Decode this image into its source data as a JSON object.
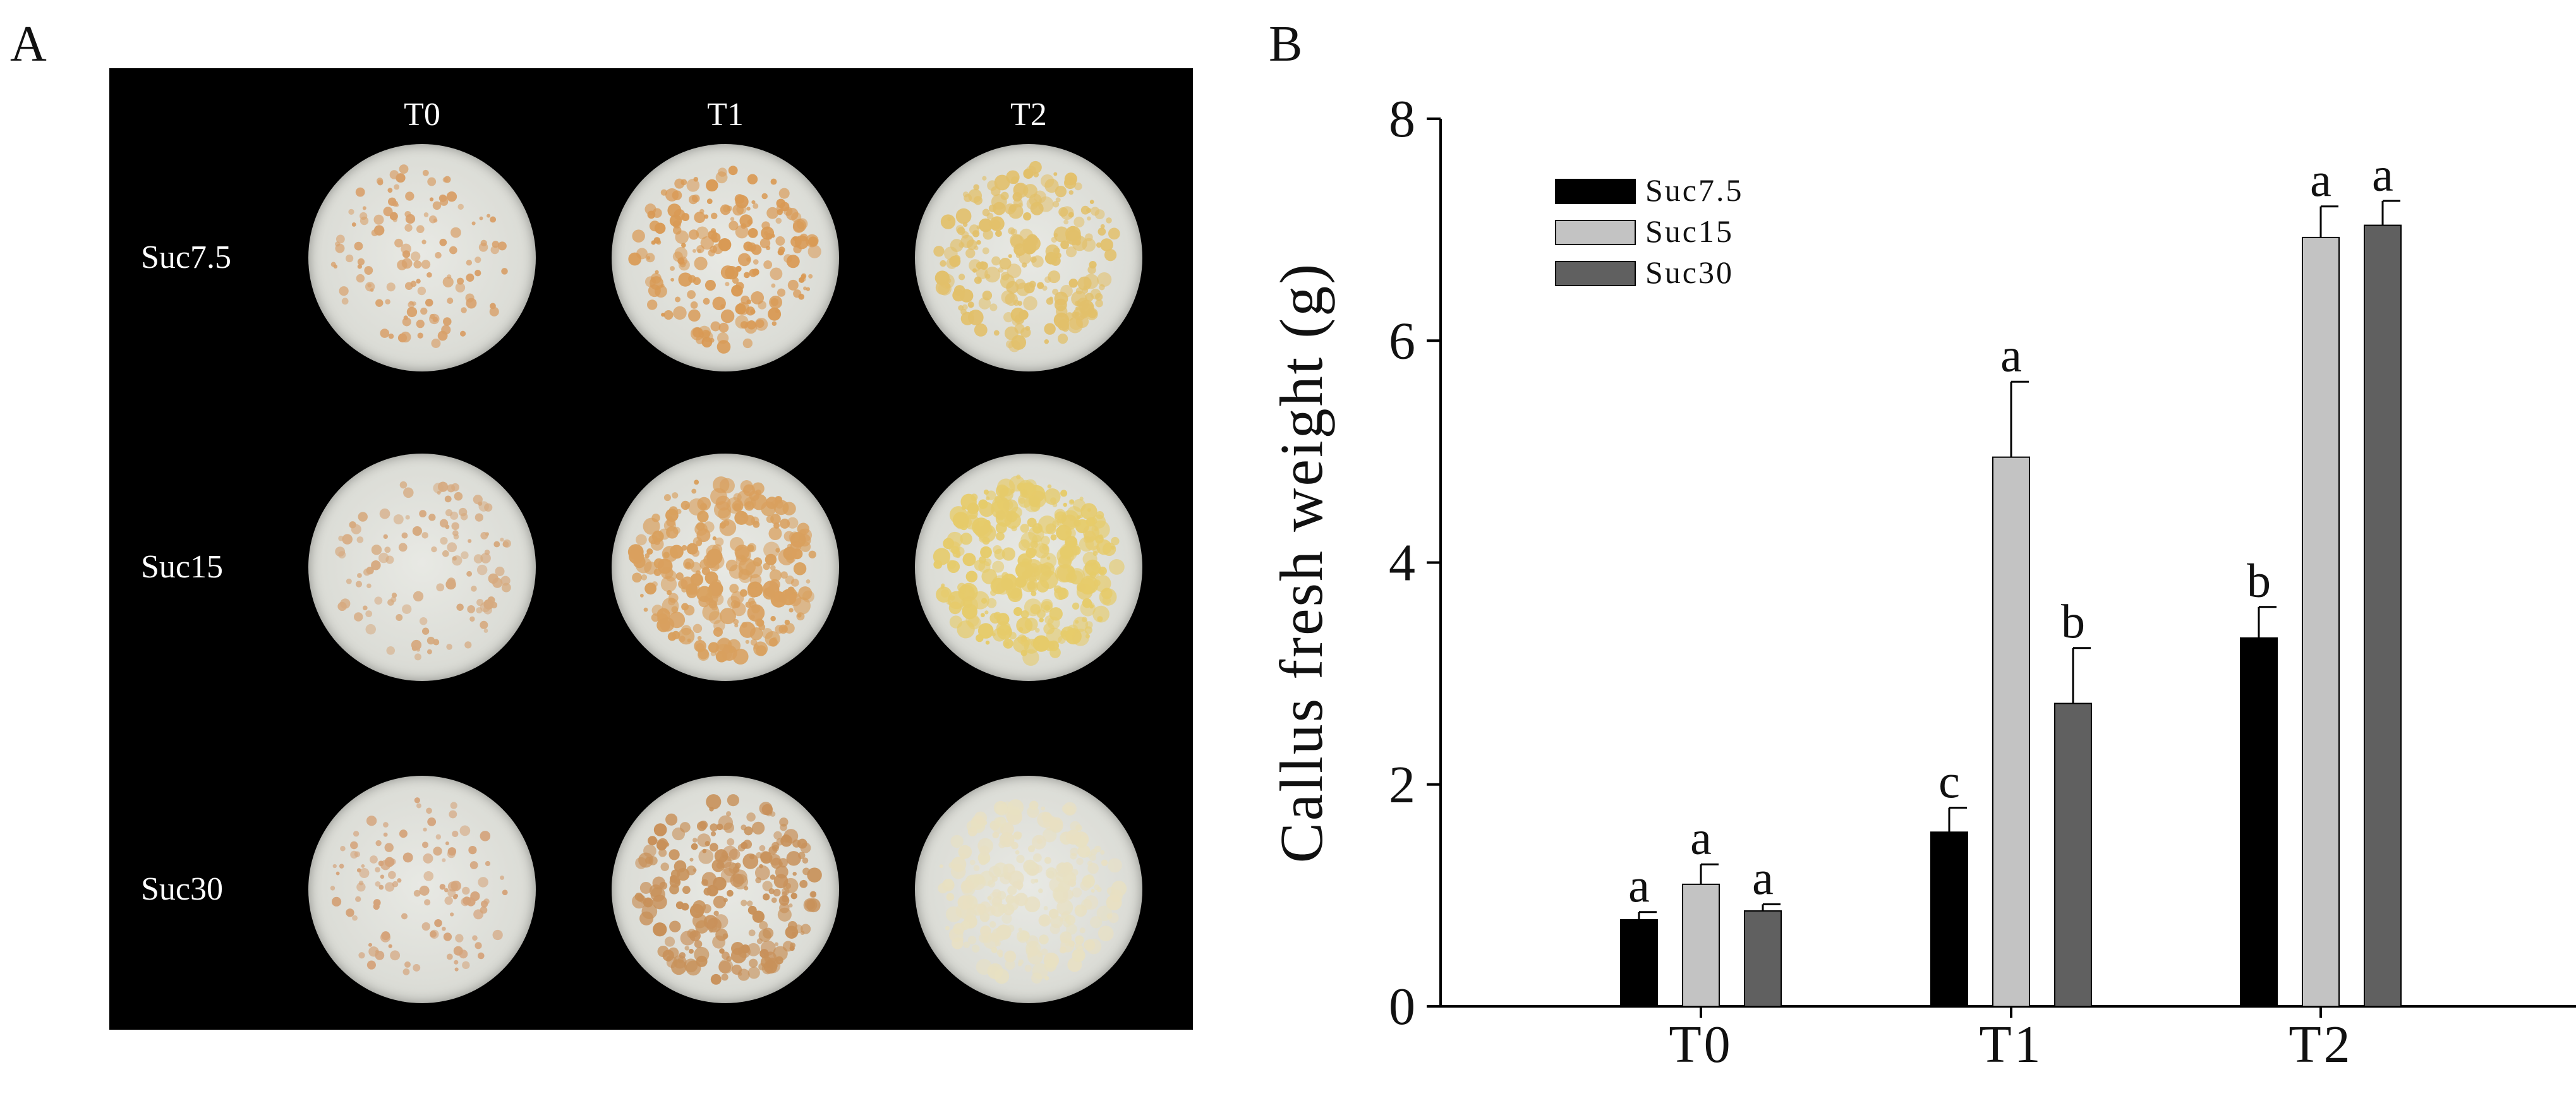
{
  "panels": {
    "a_label": "A",
    "b_label": "B"
  },
  "photo": {
    "columns": [
      "T0",
      "T1",
      "T2"
    ],
    "rows": [
      "Suc7.5",
      "Suc15",
      "Suc30"
    ],
    "plates": [
      {
        "row": "Suc7.5",
        "column": "T0",
        "callus_color": "#d8a06a",
        "callus_density": 0.25
      },
      {
        "row": "Suc7.5",
        "column": "T1",
        "callus_color": "#d99a55",
        "callus_density": 0.55
      },
      {
        "row": "Suc7.5",
        "column": "T2",
        "callus_color": "#e2c06a",
        "callus_density": 0.7
      },
      {
        "row": "Suc15",
        "column": "T0",
        "callus_color": "#d6aa80",
        "callus_density": 0.22
      },
      {
        "row": "Suc15",
        "column": "T1",
        "callus_color": "#d9a05e",
        "callus_density": 0.85
      },
      {
        "row": "Suc15",
        "column": "T2",
        "callus_color": "#e6cb6a",
        "callus_density": 0.95
      },
      {
        "row": "Suc30",
        "column": "T0",
        "callus_color": "#d4a37a",
        "callus_density": 0.22
      },
      {
        "row": "Suc30",
        "column": "T1",
        "callus_color": "#c8915a",
        "callus_density": 0.7
      },
      {
        "row": "Suc30",
        "column": "T2",
        "callus_color": "#e8e0c2",
        "callus_density": 0.75
      }
    ]
  },
  "chart_data": {
    "type": "bar",
    "categories": [
      "T0",
      "T1",
      "T2"
    ],
    "series": [
      {
        "name": "Suc7.5",
        "color": "#000000",
        "values": [
          0.78,
          1.57,
          3.32
        ],
        "errors": [
          0.07,
          0.22,
          0.28
        ],
        "letters": [
          "a",
          "c",
          "b"
        ]
      },
      {
        "name": "Suc15",
        "color": "#c3c3c3",
        "values": [
          1.1,
          4.95,
          6.93
        ],
        "errors": [
          0.18,
          0.68,
          0.28
        ],
        "letters": [
          "a",
          "a",
          "a"
        ]
      },
      {
        "name": "Suc30",
        "color": "#606060",
        "values": [
          0.86,
          2.73,
          7.04
        ],
        "errors": [
          0.06,
          0.5,
          0.22
        ],
        "letters": [
          "a",
          "b",
          "a"
        ]
      }
    ],
    "xlabel": "",
    "ylabel": "Callus fresh weight (g)",
    "ylim": [
      0,
      8
    ],
    "yticks": [
      0,
      2,
      4,
      6,
      8
    ],
    "legend_position": "top-left",
    "grid": false
  }
}
